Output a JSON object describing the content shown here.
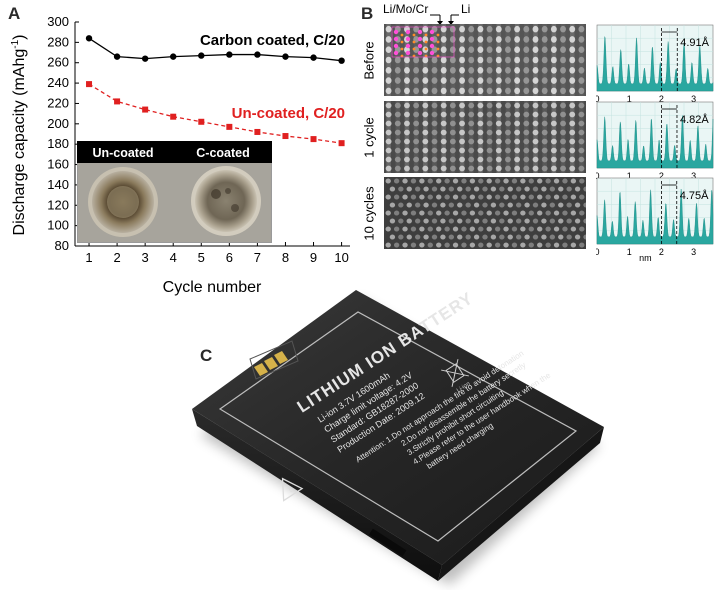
{
  "panel_a": {
    "letter": "A",
    "chart_data": {
      "type": "line",
      "xlabel": "Cycle number",
      "ylabel_main": "Discharge capacity (mAhg",
      "ylabel_sup": "-1",
      "ylabel_end": ")",
      "x": [
        1,
        2,
        3,
        4,
        5,
        6,
        7,
        8,
        9,
        10
      ],
      "xlim": [
        0.5,
        10.3
      ],
      "ylim": [
        80,
        300
      ],
      "y_ticks": [
        80,
        100,
        120,
        140,
        160,
        180,
        200,
        220,
        240,
        260,
        280,
        300
      ],
      "series": [
        {
          "name": "Carbon coated, C/20",
          "color": "#000000",
          "style": "solid",
          "marker": "circle",
          "values": [
            284,
            266,
            264,
            266,
            267,
            268,
            268,
            266,
            265,
            262
          ]
        },
        {
          "name": "Un-coated, C/20",
          "color": "#e02020",
          "style": "dashed",
          "marker": "square",
          "values": [
            239,
            222,
            214,
            207,
            202,
            197,
            192,
            188,
            185,
            181
          ]
        }
      ]
    },
    "inset": {
      "label_left": "Un-coated",
      "label_right": "C-coated"
    }
  },
  "panel_b": {
    "letter": "B",
    "top_label_mixed": "Li/Mo/Cr",
    "top_label_li": "Li",
    "rows": [
      {
        "label": "Before",
        "spacing": "4.91Å"
      },
      {
        "label": "1 cycle",
        "spacing": "4.82Å"
      },
      {
        "label": "10 cycles",
        "spacing": "4.75Å"
      }
    ],
    "axis_ticks": [
      "0",
      "1",
      "2",
      "3"
    ],
    "axis_unit": "nm",
    "profile_color": "#2aa7a0"
  },
  "panel_c": {
    "letter": "C",
    "battery": {
      "title": "LITHIUM ION BATTERY",
      "line1": "Li-ion  3.7V  1600mAh",
      "line2": "Charge limit voltage: 4.2V",
      "line3": "Standard: GB18287-2000",
      "line4": "Production Date: 2009.12",
      "attention": "Attention: 1.Do not approach the fire to avoid detonation",
      "att2": "2.Do not disassemble the battery secretly",
      "att3": "3.Strictly prohibit short circuiting",
      "att4": "4.Please refer to the user handbook when the",
      "att5": "battery need charging",
      "recycle": "Li-ion"
    }
  }
}
